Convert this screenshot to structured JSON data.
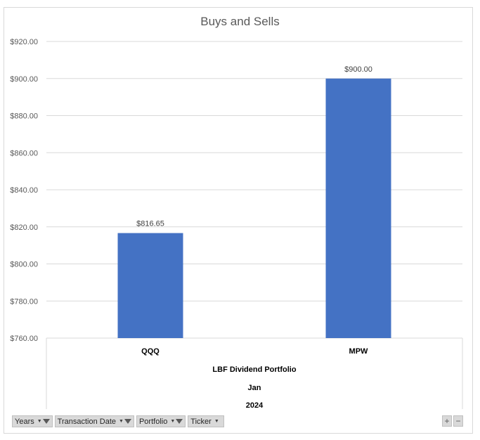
{
  "chart_data": {
    "type": "bar",
    "title": "Buys and Sells",
    "categories": [
      "QQQ",
      "MPW"
    ],
    "values": [
      816.65,
      900.0
    ],
    "value_labels": [
      "$816.65",
      "$900.00"
    ],
    "ylim": [
      760,
      920
    ],
    "y_ticks": [
      "$760.00",
      "$780.00",
      "$800.00",
      "$820.00",
      "$840.00",
      "$860.00",
      "$880.00",
      "$900.00",
      "$920.00"
    ],
    "y_tick_values": [
      760,
      780,
      800,
      820,
      840,
      860,
      880,
      900,
      920
    ],
    "grid": true,
    "bar_color": "#4472c4",
    "axis_groups": [
      "LBF Dividend Portfolio",
      "Jan",
      "2024"
    ]
  },
  "field_buttons": [
    {
      "label": "Years",
      "filtered": true
    },
    {
      "label": "Transaction Date",
      "filtered": true
    },
    {
      "label": "Portfolio",
      "filtered": true
    },
    {
      "label": "Ticker",
      "filtered": false
    }
  ],
  "zoom": {
    "plus": "+",
    "minus": "−"
  }
}
